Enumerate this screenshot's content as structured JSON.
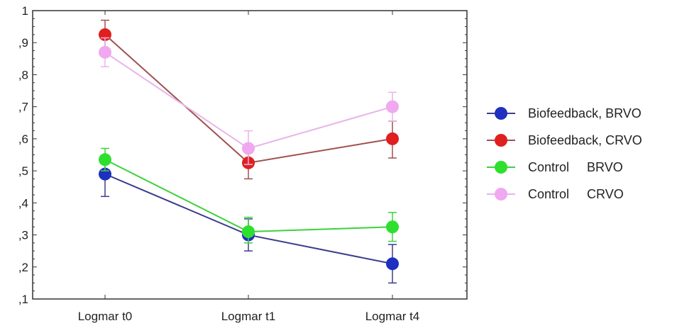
{
  "chart_data": {
    "type": "line",
    "categories": [
      "Logmar t0",
      "Logmar t1",
      "Logmar t4"
    ],
    "ylim": [
      0.1,
      1.0
    ],
    "yticks": [
      {
        "value": 0.1,
        "label": ",1"
      },
      {
        "value": 0.2,
        "label": ",2"
      },
      {
        "value": 0.3,
        "label": ",3"
      },
      {
        "value": 0.4,
        "label": ",4"
      },
      {
        "value": 0.5,
        "label": ",5"
      },
      {
        "value": 0.6,
        "label": ",6"
      },
      {
        "value": 0.7,
        "label": ",7"
      },
      {
        "value": 0.8,
        "label": ",8"
      },
      {
        "value": 0.9,
        "label": ",9"
      },
      {
        "value": 1.0,
        "label": "1"
      }
    ],
    "grid": false,
    "legend_position": "right",
    "series": [
      {
        "name": "Biofeedback, BRVO",
        "color": "#1f2fc0",
        "line_color": "#3c3c8c",
        "values": [
          0.49,
          0.3,
          0.21
        ],
        "error_low": [
          0.42,
          0.25,
          0.15
        ],
        "error_high": [
          0.54,
          0.35,
          0.27
        ]
      },
      {
        "name": "Biofeedback, CRVO",
        "color": "#e01f1f",
        "line_color": "#a05050",
        "values": [
          0.925,
          0.525,
          0.6
        ],
        "error_low": [
          0.88,
          0.475,
          0.54
        ],
        "error_high": [
          0.97,
          0.575,
          0.655
        ]
      },
      {
        "name": "Control     BRVO",
        "color": "#2ee02e",
        "line_color": "#3cd23c",
        "values": [
          0.535,
          0.31,
          0.325
        ],
        "error_low": [
          0.5,
          0.275,
          0.28
        ],
        "error_high": [
          0.57,
          0.355,
          0.37
        ]
      },
      {
        "name": "Control     CRVO",
        "color": "#f0a8f0",
        "line_color": "#e8b4e8",
        "values": [
          0.87,
          0.57,
          0.7
        ],
        "error_low": [
          0.825,
          0.52,
          0.655
        ],
        "error_high": [
          0.915,
          0.625,
          0.745
        ]
      }
    ]
  }
}
